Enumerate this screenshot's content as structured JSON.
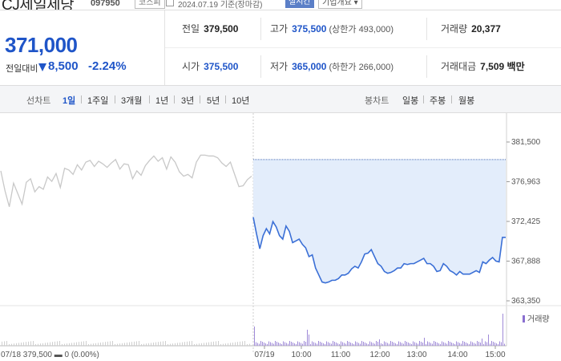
{
  "header": {
    "stock_name": "CJ제일제당",
    "stock_code": "097950",
    "market": "코스피",
    "date_text": "2024.07.19 기준(장마감)",
    "realtime_label": "실시간",
    "company_info_label": "기업개요 ▾"
  },
  "price": {
    "current": "371,000",
    "change_label": "전일대비",
    "change": "8,500",
    "change_pct": "-2.24%",
    "direction": "down",
    "color": "#1f55c8"
  },
  "stats": {
    "prev_close_label": "전일",
    "prev_close": "379,500",
    "high_label": "고가",
    "high": "375,500",
    "upper_limit": "(상한가 493,000)",
    "volume_label": "거래량",
    "volume": "20,377",
    "open_label": "시가",
    "open": "375,500",
    "low_label": "저가",
    "low": "365,000",
    "lower_limit": "(하한가 266,000)",
    "amount_label": "거래대금",
    "amount": "7,509 백만"
  },
  "toolbar": {
    "line_chart_label": "선차트",
    "periods": [
      "1일",
      "1주일",
      "3개월",
      "1년",
      "3년",
      "5년",
      "10년"
    ],
    "active_period": "1일",
    "candle_label": "봉차트",
    "candles": [
      "일봉",
      "주봉",
      "월봉"
    ]
  },
  "chart_data": {
    "type": "line",
    "title": "",
    "y_ticks": [
      "381,500",
      "376,963",
      "372,425",
      "367,888",
      "363,350"
    ],
    "ylim": [
      363350,
      381500
    ],
    "x_ticks": [
      "07/19",
      "10:00",
      "11:00",
      "12:00",
      "13:00",
      "14:00",
      "15:00"
    ],
    "prev_day_label": "07/18",
    "prev_day_info": "379,500 ▬ 0 (0.00%)",
    "volume_label": "거래량",
    "prev_close": 379500,
    "series": [
      {
        "name": "",
        "color": "#c8c8c8",
        "values": [
          378200,
          375900,
          374100,
          376800,
          375600,
          374400,
          376900,
          377300,
          375800,
          376400,
          376100,
          377500,
          377000,
          377900,
          376300,
          378500,
          378300,
          377800,
          378900,
          378300,
          379200,
          379400,
          378700,
          379300,
          379000,
          378600,
          379100,
          379500,
          378400,
          379000,
          378900,
          377300,
          378200,
          377700,
          378800,
          379400,
          379900,
          379300,
          379700,
          378400,
          379800,
          379200,
          378100,
          377600,
          377800,
          377400,
          379200,
          380000,
          380000,
          379900,
          379900,
          379700,
          379100,
          378700,
          379200,
          377800,
          376400,
          376500,
          377200,
          377600
        ]
      },
      {
        "name": "",
        "color": "#3a6fd6",
        "values": [
          372900,
          371000,
          369300,
          370800,
          371600,
          371000,
          372400,
          371800,
          370800,
          370400,
          371900,
          371300,
          370000,
          370200,
          370400,
          369800,
          369400,
          368400,
          368600,
          367100,
          366300,
          365500,
          365400,
          365500,
          365700,
          365700,
          365900,
          366300,
          366300,
          366500,
          367000,
          367300,
          367100,
          367800,
          368700,
          368800,
          369200,
          368400,
          367600,
          367300,
          366700,
          366500,
          366600,
          366800,
          367100,
          367100,
          367600,
          367500,
          367600,
          367600,
          367800,
          368000,
          368200,
          367600,
          367600,
          367300,
          366700,
          366800,
          367600,
          367300,
          366800,
          366600,
          366300,
          366700,
          366400,
          366400,
          366400,
          366600,
          366800,
          366600,
          367800,
          367600,
          368000,
          368300,
          367900,
          367800,
          370600,
          370600
        ]
      }
    ]
  }
}
